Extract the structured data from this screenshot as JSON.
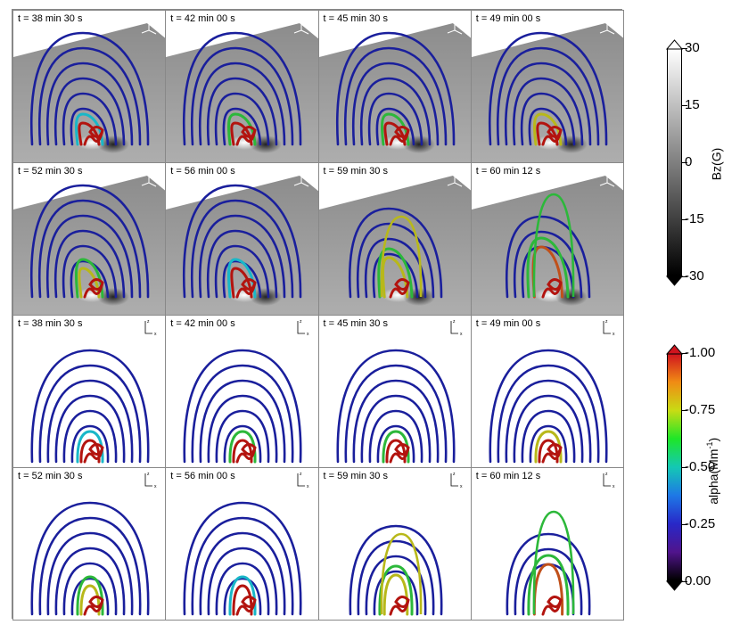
{
  "panels": [
    {
      "time": "t = 38 min 30 s",
      "view": "3d",
      "stage": 0
    },
    {
      "time": "t = 42 min 00 s",
      "view": "3d",
      "stage": 1
    },
    {
      "time": "t = 45 min 30 s",
      "view": "3d",
      "stage": 2
    },
    {
      "time": "t = 49 min 00 s",
      "view": "3d",
      "stage": 3
    },
    {
      "time": "t = 52 min 30 s",
      "view": "3d",
      "stage": 4
    },
    {
      "time": "t = 56 min 00 s",
      "view": "3d",
      "stage": 5
    },
    {
      "time": "t = 59 min 30 s",
      "view": "3d",
      "stage": 6
    },
    {
      "time": "t = 60 min 12 s",
      "view": "3d",
      "stage": 7
    },
    {
      "time": "t = 38 min 30 s",
      "view": "side",
      "stage": 0
    },
    {
      "time": "t = 42 min 00 s",
      "view": "side",
      "stage": 1
    },
    {
      "time": "t = 45 min 30 s",
      "view": "side",
      "stage": 2
    },
    {
      "time": "t = 49 min 00 s",
      "view": "side",
      "stage": 3
    },
    {
      "time": "t = 52 min 30 s",
      "view": "side",
      "stage": 4
    },
    {
      "time": "t = 56 min 00 s",
      "view": "side",
      "stage": 5
    },
    {
      "time": "t = 59 min 30 s",
      "view": "side",
      "stage": 6
    },
    {
      "time": "t = 60 min 12 s",
      "view": "side",
      "stage": 7
    }
  ],
  "colorbar_bz": {
    "label": "Bz(G)",
    "ticks": [
      "30",
      "15",
      "0",
      "-15",
      "-30"
    ],
    "colors": [
      "#ffffff",
      "#000000"
    ]
  },
  "colorbar_alpha": {
    "label": "alpha(Mm",
    "label_sup": "-1",
    "label_close": ")",
    "ticks": [
      "-1.00",
      "-0.75",
      "-0.50",
      "-0.25",
      "0.00"
    ],
    "colors": [
      "#d0141e",
      "#f08c14",
      "#c8dc14",
      "#1ee628",
      "#14c8b4",
      "#1e78e6",
      "#2828c8",
      "#50148c",
      "#000000"
    ]
  },
  "axis_letters": {
    "x": "x",
    "y": "y",
    "z": "z"
  },
  "line_colors": {
    "blue": "#1a1f9c",
    "cyan": "#19b7c8",
    "green": "#2cb83a",
    "yellow": "#b8b81a",
    "red": "#b3140f",
    "orange": "#c0501a"
  }
}
